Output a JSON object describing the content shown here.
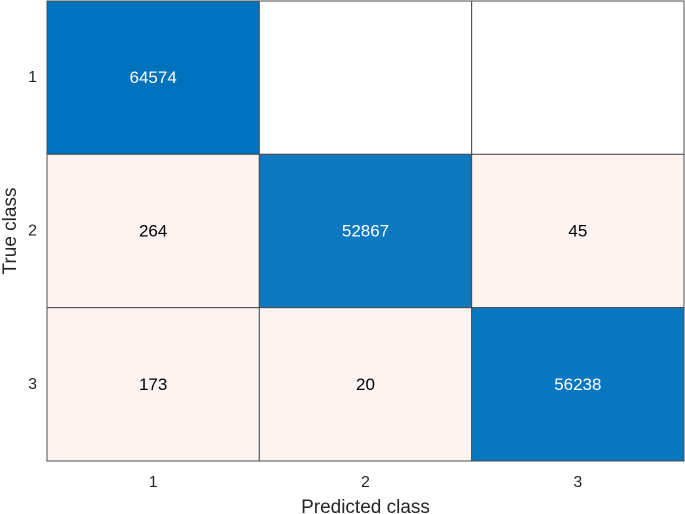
{
  "chart_data": {
    "type": "heatmap",
    "title": "",
    "xlabel": "Predicted class",
    "ylabel": "True class",
    "x_categories": [
      "1",
      "2",
      "3"
    ],
    "y_categories": [
      "1",
      "2",
      "3"
    ],
    "values": [
      [
        64574,
        null,
        null
      ],
      [
        264,
        52867,
        45
      ],
      [
        173,
        20,
        56238
      ]
    ],
    "colors": {
      "diagonal_high": "#0072bd",
      "off_diagonal": "#fdf3f0",
      "empty": "#ffffff",
      "light_text": "#ffffff",
      "dark_text": "#000000",
      "grid": "#4d4d4d"
    },
    "grid": true
  }
}
